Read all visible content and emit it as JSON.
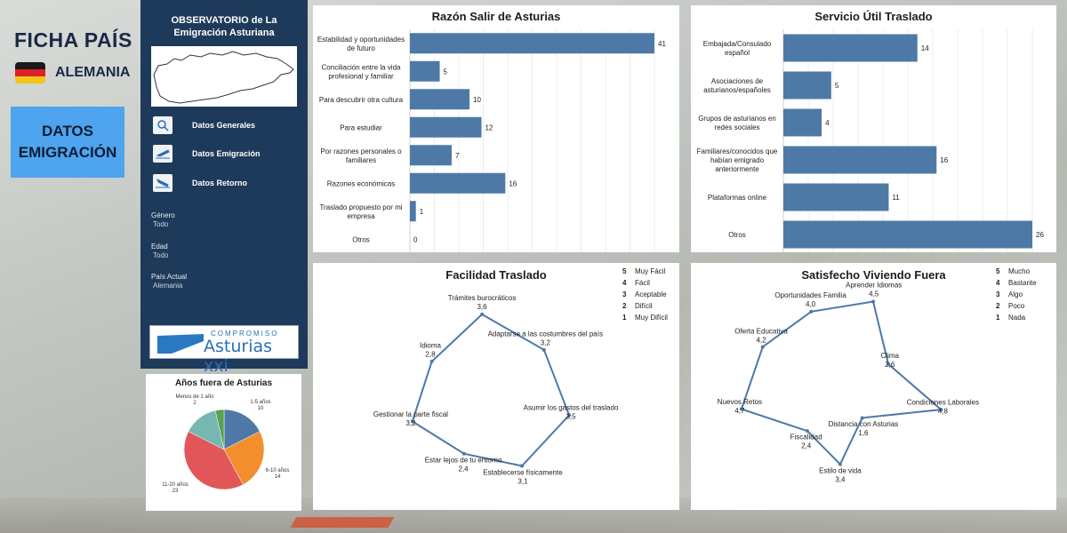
{
  "header": {
    "ficha_title": "FICHA PAÍS",
    "country": "ALEMANIA",
    "datos_line1": "DATOS",
    "datos_line2": "EMIGRACIÓN",
    "flag_colors": [
      "#1a1a1a",
      "#dd1f26",
      "#f5c518"
    ]
  },
  "sidebar": {
    "title_line1": "OBSERVATORIO de La",
    "title_line2": "Emigración Asturiana",
    "nav": [
      {
        "label": "Datos Generales",
        "icon": "search-map-icon"
      },
      {
        "label": "Datos Emigración",
        "icon": "plane-takeoff-icon"
      },
      {
        "label": "Datos Retorno",
        "icon": "plane-landing-icon"
      }
    ],
    "filters": [
      {
        "label": "Género",
        "value": "Todo"
      },
      {
        "label": "Edad",
        "value": "Todo"
      },
      {
        "label": "País Actual",
        "value": "Alemania"
      }
    ],
    "logo_line1": "COMPROMISO",
    "logo_line2": "Asturias xxi"
  },
  "chart_data": [
    {
      "type": "bar",
      "title": "Razón Salir de Asturias",
      "orientation": "horizontal",
      "bar_color": "#4e79a7",
      "categories": [
        [
          "Estabilidad y oportunidades",
          "de futuro"
        ],
        [
          "Conciliación entre la vida",
          "profesional y familiar"
        ],
        [
          "Para descubrir otra cultura"
        ],
        [
          "Para estudiar"
        ],
        [
          "Por razones personales o",
          "familiares"
        ],
        [
          "Razones económicas"
        ],
        [
          "Traslado propuesto por mi",
          "empresa"
        ],
        [
          "Otros"
        ]
      ],
      "values": [
        41,
        5,
        10,
        12,
        7,
        16,
        1,
        0
      ],
      "xlim": [
        0,
        41
      ]
    },
    {
      "type": "bar",
      "title": "Servicio Útil Traslado",
      "orientation": "horizontal",
      "bar_color": "#4e79a7",
      "categories": [
        [
          "Embajada/Consulado",
          "español"
        ],
        [
          "Asociaciones de",
          "asturianos/españoles"
        ],
        [
          "Grupos de asturianos en",
          "redes sociales"
        ],
        [
          "Familiares/conocidos que",
          "habían emigrado",
          "anteriormente"
        ],
        [
          "Plataformas online"
        ],
        [
          "Otros"
        ]
      ],
      "values": [
        14,
        5,
        4,
        16,
        11,
        26
      ],
      "xlim": [
        0,
        26
      ]
    },
    {
      "type": "radar",
      "title": "Facilidad Traslado",
      "scale_max": 5,
      "line_color": "#4e79a7",
      "axes": [
        {
          "label": "Trámites burocráticos",
          "value": 3.6,
          "display": "3,6"
        },
        {
          "label": "Adaptarse a las costumbres del país",
          "value": 3.2,
          "display": "3,2"
        },
        {
          "label": "Asumir los gastos del traslado",
          "value": 3.5,
          "display": "3,5"
        },
        {
          "label": "Establecerse físicamente",
          "value": 3.1,
          "display": "3,1"
        },
        {
          "label": "Estar lejos de tu entorno",
          "value": 2.4,
          "display": "2,4"
        },
        {
          "label": "Gestionar la parte fiscal",
          "value": 3.2,
          "display": "3,2"
        },
        {
          "label": "Idioma",
          "value": 2.8,
          "display": "2,8"
        }
      ],
      "legend": [
        {
          "num": "5",
          "label": "Muy Fácil"
        },
        {
          "num": "4",
          "label": "Fácil"
        },
        {
          "num": "3",
          "label": "Aceptable"
        },
        {
          "num": "2",
          "label": "Difícil"
        },
        {
          "num": "1",
          "label": "Muy Difícil"
        }
      ]
    },
    {
      "type": "radar",
      "title": "Satisfecho Viviendo Fuera",
      "scale_max": 5,
      "line_color": "#4e79a7",
      "axes": [
        {
          "label": "Aprender Idiomas",
          "value": 4.5,
          "display": "4,5"
        },
        {
          "label": "Clima",
          "value": 2.6,
          "display": "2,6"
        },
        {
          "label": "Condiciones Laborales",
          "value": 4.8,
          "display": "4,8"
        },
        {
          "label": "Distancia con Asturias",
          "value": 1.6,
          "display": "1,6"
        },
        {
          "label": "Estilo de vida",
          "value": 3.4,
          "display": "3,4"
        },
        {
          "label": "Fiscalidad",
          "value": 2.4,
          "display": "2,4"
        },
        {
          "label": "Nuevos Retos",
          "value": 4.7,
          "display": "4,7"
        },
        {
          "label": "Oferta Educativa",
          "value": 4.2,
          "display": "4,2"
        },
        {
          "label": "Oportunidades Familia",
          "value": 4.0,
          "display": "4,0"
        }
      ],
      "legend": [
        {
          "num": "5",
          "label": "Mucho"
        },
        {
          "num": "4",
          "label": "Bastante"
        },
        {
          "num": "3",
          "label": "Algo"
        },
        {
          "num": "2",
          "label": "Poco"
        },
        {
          "num": "1",
          "label": "Nada"
        }
      ]
    },
    {
      "type": "pie",
      "title": "Años fuera de Asturias",
      "slices": [
        {
          "label": "1-5 años",
          "value": 10,
          "color": "#4e79a7"
        },
        {
          "label": "6-10 años",
          "value": 14,
          "color": "#f28e2b"
        },
        {
          "label": "11-20 años",
          "value": 23,
          "color": "#e15759"
        },
        {
          "label": "",
          "value": 8,
          "color": "#76b7b2"
        },
        {
          "label": "Menos de 1 año",
          "value": 2,
          "color": "#59a14f"
        }
      ]
    }
  ]
}
